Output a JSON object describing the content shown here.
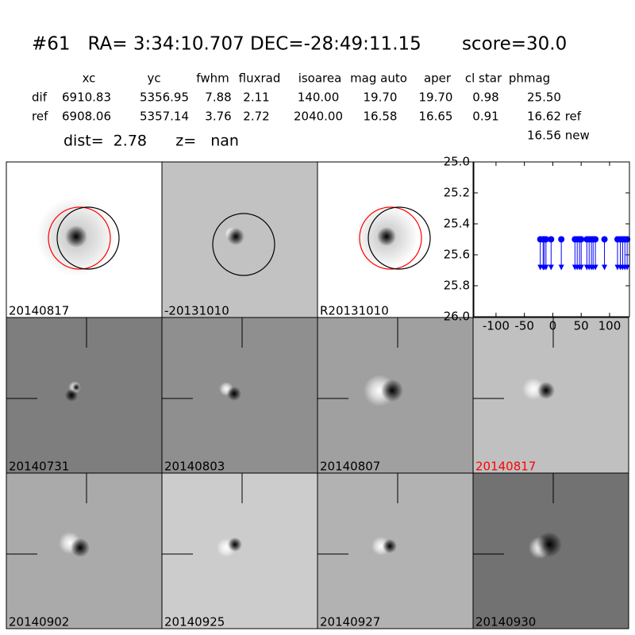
{
  "header": {
    "title": "#61   RA= 3:34:10.707 DEC=-28:49:11.15       score=30.0",
    "columns": [
      "xc",
      "yc",
      "fwhm",
      "fluxrad",
      "isoarea",
      "mag auto",
      "aper",
      "cl star",
      "phmag"
    ],
    "rows": [
      {
        "label": "dif",
        "cells": [
          "6910.83",
          "5356.95",
          "7.88",
          "2.11",
          "140.00",
          "19.70",
          "19.70",
          "0.98",
          "25.50"
        ]
      },
      {
        "label": "ref",
        "cells": [
          "6908.06",
          "5357.14",
          "3.76",
          "2.72",
          "2040.00",
          "16.58",
          "16.65",
          "0.91",
          "16.62 ref"
        ]
      }
    ],
    "extra": "16.56 new",
    "dist": "dist=  2.78      z=   nan"
  },
  "stamps": [
    {
      "label": "20140817",
      "color": "#000000"
    },
    {
      "label": "-20131010",
      "color": "#000000"
    },
    {
      "label": "R20131010",
      "color": "#000000"
    },
    {
      "label": "20140731",
      "color": "#000000"
    },
    {
      "label": "20140803",
      "color": "#000000"
    },
    {
      "label": "20140807",
      "color": "#000000"
    },
    {
      "label": "20140817",
      "color": "#ff0000"
    },
    {
      "label": "20140902",
      "color": "#000000"
    },
    {
      "label": "20140925",
      "color": "#000000"
    },
    {
      "label": "20140927",
      "color": "#000000"
    },
    {
      "label": "20140930",
      "color": "#000000"
    }
  ],
  "chart_data": {
    "type": "scatter",
    "color": "#0000ff",
    "x": [
      -22,
      -17,
      -15,
      -12,
      -3,
      15,
      39,
      43,
      47,
      50,
      60,
      64,
      68,
      71,
      75,
      91,
      114,
      119,
      123,
      127,
      131
    ],
    "values": [
      25.5,
      25.5,
      25.5,
      25.5,
      25.5,
      25.5,
      25.5,
      25.5,
      25.5,
      25.5,
      25.5,
      25.5,
      25.5,
      25.5,
      25.5,
      25.5,
      25.5,
      25.5,
      25.5,
      25.5,
      25.5
    ],
    "xlim": [
      -139,
      135
    ],
    "ylim": [
      26.0,
      25.0
    ],
    "inverted_y": true,
    "xticks": [
      -100,
      -50,
      0,
      50,
      100
    ],
    "yticks": [
      {
        "value": 25.0,
        "label": "25.0"
      },
      {
        "value": 25.2,
        "label": "25.2"
      },
      {
        "value": 25.4,
        "label": "25.4"
      },
      {
        "value": 25.6,
        "label": "25.6"
      },
      {
        "value": 25.8,
        "label": "25.8"
      },
      {
        "value": 26.0,
        "label": "26.0"
      }
    ]
  }
}
